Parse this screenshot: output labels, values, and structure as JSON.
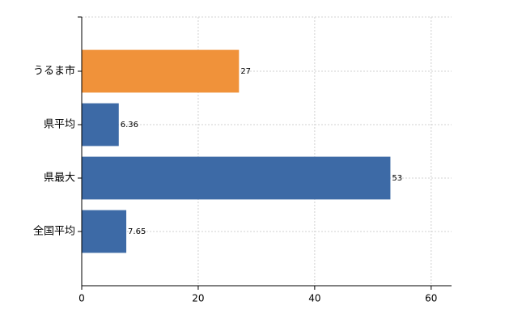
{
  "chart_data": {
    "type": "barh",
    "categories": [
      "うるま市",
      "県平均",
      "県最大",
      "全国平均"
    ],
    "values": [
      27,
      6.36,
      53,
      7.65
    ],
    "colors": [
      "#f0923a",
      "#3d6aa6",
      "#3d6aa6",
      "#3d6aa6"
    ],
    "xlim": [
      0,
      63.5
    ],
    "xticks": [
      0,
      20,
      40,
      60
    ],
    "grid": true
  }
}
